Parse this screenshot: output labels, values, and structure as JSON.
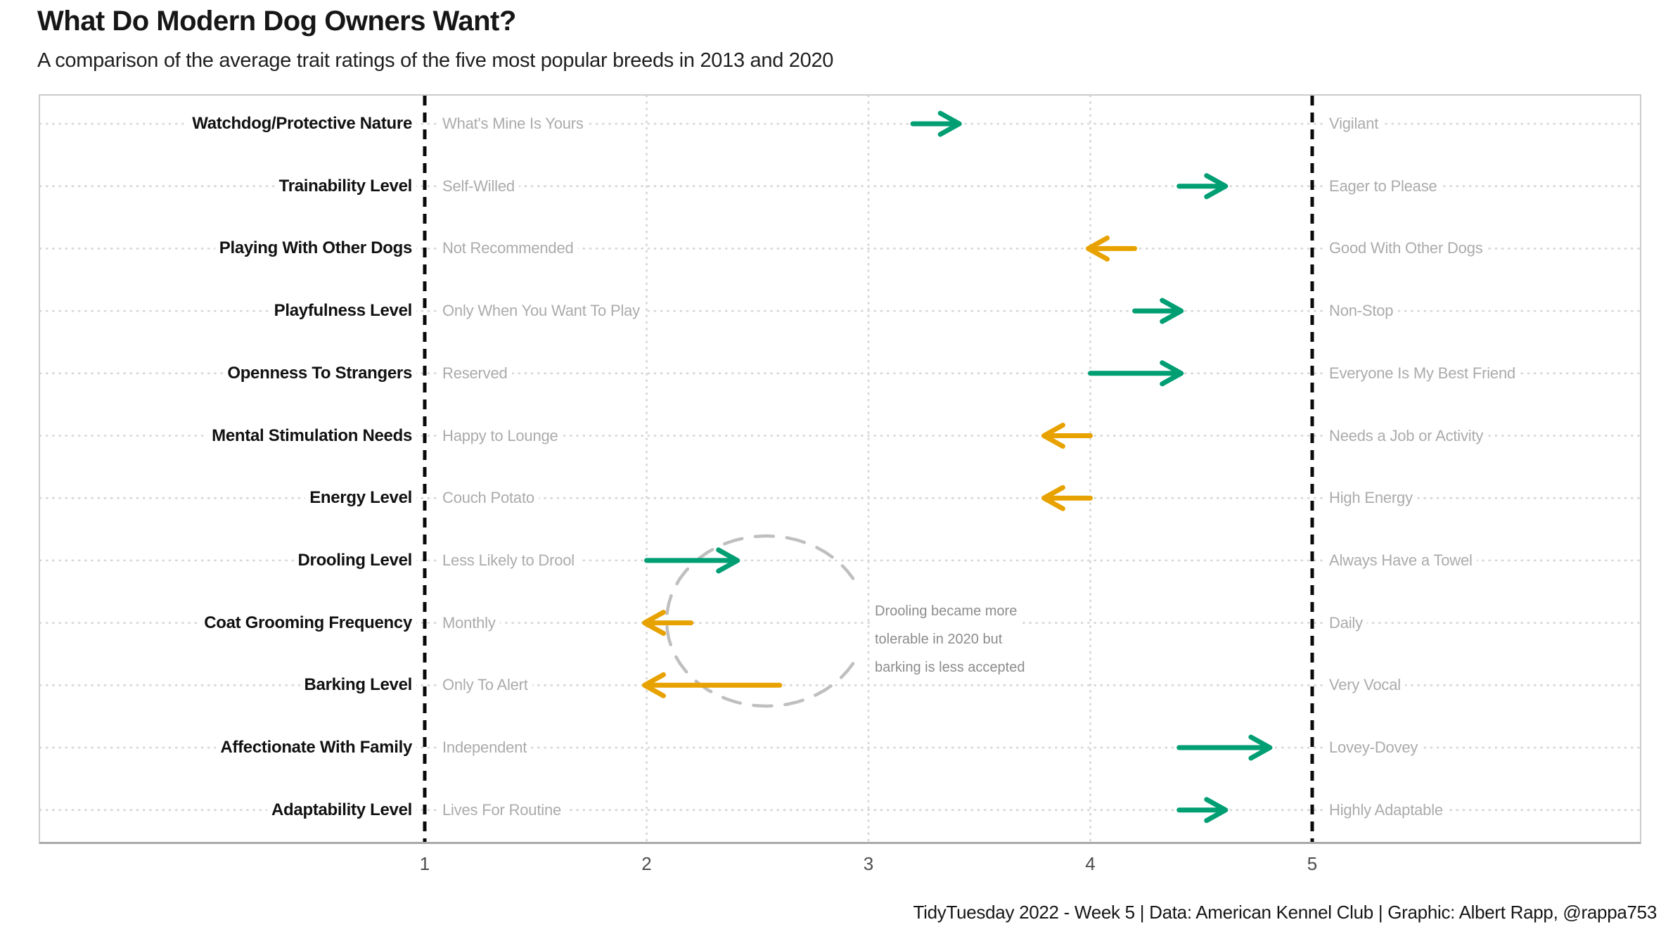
{
  "header": {
    "title": "What Do Modern Dog Owners Want?",
    "subtitle": "A comparison of the average trait ratings of the five most popular breeds in 2013 and 2020"
  },
  "caption": "TidyTuesday 2022 - Week 5 | Data: American Kennel Club | Graphic: Albert Rapp, @rappa753",
  "annotation": {
    "lines": [
      "Drooling became more",
      "tolerable in 2020 but",
      "barking is less accepted"
    ]
  },
  "colors": {
    "increase": "#009E73",
    "decrease": "#E8A200",
    "dotted_grid": "#d8d8d8",
    "anchor_dash": "#0a0a0a",
    "ellipse": "#bfbfbf",
    "side_label": "#ababab",
    "trait_label": "#111111"
  },
  "chart_data": {
    "type": "dumbbell-arrow",
    "title": "What Do Modern Dog Owners Want?",
    "subtitle": "A comparison of the average trait ratings of the five most popular breeds in 2013 and 2020",
    "x_ticks": [
      1,
      2,
      3,
      4,
      5
    ],
    "xlim": [
      1,
      5
    ],
    "anchor_lines": [
      1,
      5
    ],
    "grid": "dotted",
    "series_years": [
      "2013",
      "2020"
    ],
    "arrow_semantics": "arrow points from 2013 rating to 2020 rating; green = increase, orange = decrease",
    "traits": [
      {
        "trait": "Watchdog/Protective Nature",
        "low": "What's Mine Is Yours",
        "high": "Vigilant",
        "r2013": 3.2,
        "r2020": 3.4
      },
      {
        "trait": "Trainability Level",
        "low": "Self-Willed",
        "high": "Eager to Please",
        "r2013": 4.4,
        "r2020": 4.6
      },
      {
        "trait": "Playing With Other Dogs",
        "low": "Not Recommended",
        "high": "Good With Other Dogs",
        "r2013": 4.2,
        "r2020": 4.0
      },
      {
        "trait": "Playfulness Level",
        "low": "Only When You Want To Play",
        "high": "Non-Stop",
        "r2013": 4.2,
        "r2020": 4.4
      },
      {
        "trait": "Openness To Strangers",
        "low": "Reserved",
        "high": "Everyone Is My Best Friend",
        "r2013": 4.0,
        "r2020": 4.4
      },
      {
        "trait": "Mental Stimulation Needs",
        "low": "Happy to Lounge",
        "high": "Needs a Job or Activity",
        "r2013": 4.0,
        "r2020": 3.8
      },
      {
        "trait": "Energy Level",
        "low": "Couch Potato",
        "high": "High Energy",
        "r2013": 4.0,
        "r2020": 3.8
      },
      {
        "trait": "Drooling Level",
        "low": "Less Likely to Drool",
        "high": "Always Have a Towel",
        "r2013": 2.0,
        "r2020": 2.4
      },
      {
        "trait": "Coat Grooming Frequency",
        "low": "Monthly",
        "high": "Daily",
        "r2013": 2.2,
        "r2020": 2.0
      },
      {
        "trait": "Barking Level",
        "low": "Only To Alert",
        "high": "Very Vocal",
        "r2013": 2.6,
        "r2020": 2.0
      },
      {
        "trait": "Affectionate With Family",
        "low": "Independent",
        "high": "Lovey-Dovey",
        "r2013": 4.4,
        "r2020": 4.8
      },
      {
        "trait": "Adaptability Level",
        "low": "Lives For Routine",
        "high": "Highly Adaptable",
        "r2013": 4.4,
        "r2020": 4.6
      }
    ]
  }
}
